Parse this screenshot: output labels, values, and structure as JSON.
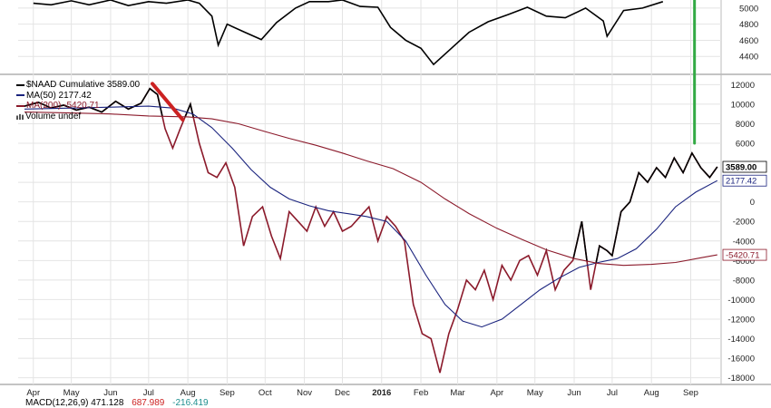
{
  "chart_data": [
    {
      "type": "line",
      "panel": "top",
      "ylim": [
        4200,
        5100
      ],
      "y_ticks": [
        4400,
        4600,
        4800,
        5000
      ],
      "series": [
        {
          "name": "",
          "color": "#000000",
          "x": [
            "2015-04-01",
            "2015-04-15",
            "2015-05-01",
            "2015-05-15",
            "2015-06-01",
            "2015-06-15",
            "2015-07-01",
            "2015-07-15",
            "2015-08-01",
            "2015-08-10",
            "2015-08-20",
            "2015-08-25",
            "2015-09-01",
            "2015-09-15",
            "2015-09-28",
            "2015-10-10",
            "2015-10-25",
            "2015-11-05",
            "2015-11-20",
            "2015-12-01",
            "2015-12-15",
            "2015-12-29",
            "2016-01-08",
            "2016-01-20",
            "2016-02-01",
            "2016-02-11",
            "2016-02-25",
            "2016-03-10",
            "2016-03-25",
            "2016-04-10",
            "2016-04-25",
            "2016-05-10",
            "2016-05-25",
            "2016-06-10",
            "2016-06-24",
            "2016-06-27",
            "2016-07-10",
            "2016-07-25",
            "2016-08-10"
          ],
          "values": [
            5060,
            5040,
            5090,
            5040,
            5100,
            5030,
            5080,
            5060,
            5100,
            5060,
            4900,
            4540,
            4800,
            4700,
            4610,
            4820,
            5000,
            5080,
            5080,
            5100,
            5020,
            5010,
            4760,
            4600,
            4500,
            4300,
            4500,
            4700,
            4830,
            4920,
            5010,
            4900,
            4880,
            5000,
            4840,
            4650,
            4970,
            5000,
            5080
          ]
        }
      ]
    },
    {
      "type": "line",
      "panel": "main",
      "title": "$NAAD Cumulative 3589.00",
      "ylim": [
        -18500,
        12500
      ],
      "y_ticks": [
        12000,
        10000,
        8000,
        6000,
        4000,
        2000,
        0,
        -2000,
        -4000,
        -6000,
        -8000,
        -10000,
        -12000,
        -14000,
        -16000,
        -18000
      ],
      "y_tick_labels": [
        "12000",
        "10000",
        "8000",
        "6000",
        "",
        "",
        "0",
        "-2000",
        "-4000",
        "-6000",
        "-8000",
        "-10000",
        "-12000",
        "-14000",
        "-16000",
        "-18000"
      ],
      "x_ticks": [
        {
          "label": "Apr",
          "x": "2015-04-01"
        },
        {
          "label": "May",
          "x": "2015-05-01"
        },
        {
          "label": "Jun",
          "x": "2015-06-01"
        },
        {
          "label": "Jul",
          "x": "2015-07-01"
        },
        {
          "label": "Aug",
          "x": "2015-08-01"
        },
        {
          "label": "Sep",
          "x": "2015-09-01"
        },
        {
          "label": "Oct",
          "x": "2015-10-01"
        },
        {
          "label": "Nov",
          "x": "2015-11-01"
        },
        {
          "label": "Dec",
          "x": "2015-12-01"
        },
        {
          "label": "2016",
          "x": "2016-01-01",
          "bold": true
        },
        {
          "label": "Feb",
          "x": "2016-02-01"
        },
        {
          "label": "Mar",
          "x": "2016-03-01"
        },
        {
          "label": "Apr",
          "x": "2016-04-01"
        },
        {
          "label": "May",
          "x": "2016-05-01"
        },
        {
          "label": "Jun",
          "x": "2016-06-01"
        },
        {
          "label": "Jul",
          "x": "2016-07-01"
        },
        {
          "label": "Aug",
          "x": "2016-08-01"
        },
        {
          "label": "Sep",
          "x": "2016-09-01"
        }
      ],
      "x_range": [
        "2015-03-20",
        "2016-09-25"
      ],
      "legend": [
        {
          "label": "$NAAD Cumulative 3589.00",
          "color": "#000000"
        },
        {
          "label": "MA(50) 2177.42",
          "color": "#1a237e"
        },
        {
          "label": "MA(200) -5420.71",
          "color": "#8b1a2b"
        },
        {
          "label": "Volume undef",
          "color": "#555555",
          "icon": "volume-bars-icon"
        }
      ],
      "last_value_tags": [
        {
          "label": "3589.00",
          "value": 3589,
          "color": "#000000",
          "bold": true
        },
        {
          "label": "2177.42",
          "value": 2177.42,
          "color": "#1a237e"
        },
        {
          "label": "-5420.71",
          "value": -5420.71,
          "color": "#8b1a2b"
        }
      ],
      "series": [
        {
          "name": "$NAAD Cumulative",
          "color": "#000000",
          "below_color": "#8b1a2b",
          "x": [
            "2015-03-25",
            "2015-04-05",
            "2015-04-15",
            "2015-04-25",
            "2015-05-05",
            "2015-05-15",
            "2015-05-25",
            "2015-06-05",
            "2015-06-15",
            "2015-06-25",
            "2015-07-02",
            "2015-07-08",
            "2015-07-14",
            "2015-07-20",
            "2015-07-26",
            "2015-08-03",
            "2015-08-10",
            "2015-08-17",
            "2015-08-24",
            "2015-08-31",
            "2015-09-07",
            "2015-09-14",
            "2015-09-21",
            "2015-09-29",
            "2015-10-06",
            "2015-10-13",
            "2015-10-20",
            "2015-10-27",
            "2015-11-03",
            "2015-11-10",
            "2015-11-17",
            "2015-11-24",
            "2015-12-01",
            "2015-12-08",
            "2015-12-15",
            "2015-12-22",
            "2015-12-29",
            "2016-01-05",
            "2016-01-12",
            "2016-01-19",
            "2016-01-26",
            "2016-02-02",
            "2016-02-09",
            "2016-02-16",
            "2016-02-23",
            "2016-03-01",
            "2016-03-08",
            "2016-03-15",
            "2016-03-22",
            "2016-03-29",
            "2016-04-05",
            "2016-04-12",
            "2016-04-19",
            "2016-04-26",
            "2016-05-03",
            "2016-05-10",
            "2016-05-17",
            "2016-05-24",
            "2016-05-31",
            "2016-06-07",
            "2016-06-14",
            "2016-06-21",
            "2016-06-27",
            "2016-07-01",
            "2016-07-08",
            "2016-07-15",
            "2016-07-22",
            "2016-07-29",
            "2016-08-05",
            "2016-08-12",
            "2016-08-19",
            "2016-08-26",
            "2016-09-02",
            "2016-09-09",
            "2016-09-16",
            "2016-09-22"
          ],
          "values": [
            9800,
            10200,
            9600,
            9900,
            9400,
            9700,
            9200,
            10300,
            9500,
            10100,
            11600,
            11000,
            7500,
            5500,
            7500,
            10000,
            6000,
            3000,
            2500,
            4000,
            1500,
            -4500,
            -1500,
            -500,
            -3500,
            -5800,
            -1000,
            -2000,
            -3000,
            -500,
            -2500,
            -1000,
            -3000,
            -2500,
            -1500,
            -500,
            -4000,
            -1500,
            -2500,
            -4000,
            -10500,
            -13500,
            -14000,
            -17500,
            -13500,
            -11000,
            -8000,
            -9000,
            -7000,
            -10000,
            -6500,
            -8000,
            -6000,
            -5500,
            -7500,
            -5000,
            -9000,
            -7000,
            -6000,
            -2000,
            -9000,
            -4500,
            -5000,
            -5500,
            -1000,
            0,
            3000,
            2000,
            3500,
            2500,
            4500,
            3000,
            5000,
            3500,
            2500,
            3589
          ]
        },
        {
          "name": "MA(50)",
          "color": "#1a237e",
          "x": [
            "2015-03-25",
            "2015-05-01",
            "2015-06-01",
            "2015-07-01",
            "2015-07-20",
            "2015-08-05",
            "2015-08-20",
            "2015-09-05",
            "2015-09-20",
            "2015-10-05",
            "2015-10-20",
            "2015-11-05",
            "2015-11-20",
            "2015-12-05",
            "2015-12-20",
            "2016-01-05",
            "2016-01-20",
            "2016-02-05",
            "2016-02-20",
            "2016-03-05",
            "2016-03-20",
            "2016-04-05",
            "2016-04-20",
            "2016-05-05",
            "2016-05-20",
            "2016-06-05",
            "2016-06-20",
            "2016-07-05",
            "2016-07-20",
            "2016-08-05",
            "2016-08-20",
            "2016-09-05",
            "2016-09-22"
          ],
          "values": [
            9500,
            9600,
            9700,
            9800,
            9600,
            9000,
            7600,
            5500,
            3300,
            1500,
            300,
            -400,
            -900,
            -1200,
            -1500,
            -2000,
            -4000,
            -7500,
            -10500,
            -12200,
            -12800,
            -12000,
            -10500,
            -9000,
            -7800,
            -6700,
            -6200,
            -5800,
            -4800,
            -2800,
            -500,
            1000,
            2177
          ]
        },
        {
          "name": "MA(200)",
          "color": "#8b1a2b",
          "x": [
            "2015-03-25",
            "2015-05-01",
            "2015-06-01",
            "2015-07-01",
            "2015-08-01",
            "2015-08-20",
            "2015-09-10",
            "2015-10-01",
            "2015-10-20",
            "2015-11-10",
            "2015-12-01",
            "2015-12-20",
            "2016-01-10",
            "2016-02-01",
            "2016-02-20",
            "2016-03-10",
            "2016-04-01",
            "2016-04-20",
            "2016-05-10",
            "2016-06-01",
            "2016-06-20",
            "2016-07-10",
            "2016-08-01",
            "2016-08-20",
            "2016-09-10",
            "2016-09-22"
          ],
          "values": [
            9200,
            9100,
            9000,
            8800,
            8700,
            8500,
            8000,
            7200,
            6500,
            5800,
            5000,
            4200,
            3400,
            2000,
            300,
            -1200,
            -2700,
            -3800,
            -4900,
            -5800,
            -6300,
            -6500,
            -6400,
            -6200,
            -5700,
            -5421
          ]
        }
      ],
      "annotations": [
        {
          "type": "trendline",
          "color": "#cc2222",
          "from": {
            "x": "2015-07-04",
            "y": 12100
          },
          "to": {
            "x": "2015-07-28",
            "y": 8400
          }
        },
        {
          "type": "trendline",
          "color": "#33aa44",
          "from": {
            "x": "2016-09-04",
            "y": 6000
          },
          "to": {
            "x": "2016-09-04",
            "y": 22000
          }
        }
      ]
    }
  ],
  "macd_strip": {
    "label": "MACD(12,26,9) 471.128",
    "value_1": "687.989",
    "value_2": "-216.419"
  }
}
